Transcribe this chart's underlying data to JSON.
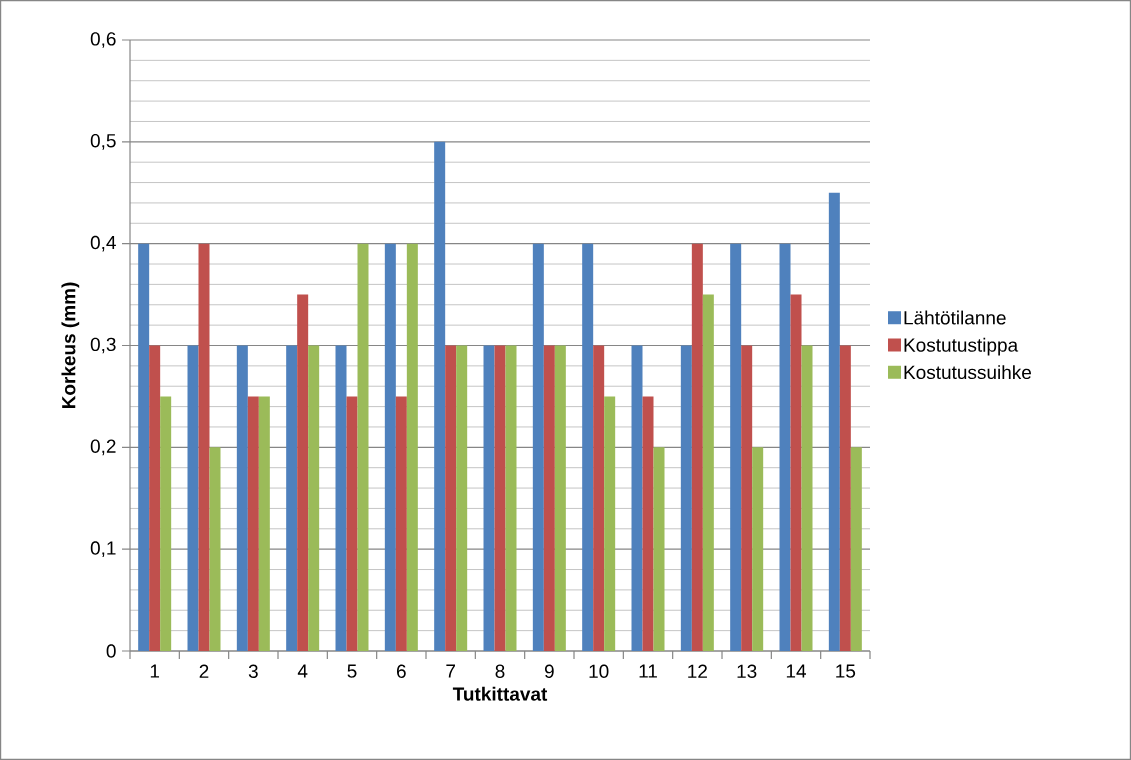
{
  "chart_data": {
    "type": "bar",
    "xlabel": "Tutkittavat",
    "ylabel": "Korkeus (mm)",
    "categories": [
      "1",
      "2",
      "3",
      "4",
      "5",
      "6",
      "7",
      "8",
      "9",
      "10",
      "11",
      "12",
      "13",
      "14",
      "15"
    ],
    "series": [
      {
        "name": "Lähtötilanne",
        "color": "#4f81bd",
        "values": [
          0.4,
          0.3,
          0.3,
          0.3,
          0.3,
          0.4,
          0.5,
          0.3,
          0.4,
          0.4,
          0.3,
          0.3,
          0.4,
          0.4,
          0.45
        ]
      },
      {
        "name": "Kostutustippa",
        "color": "#c0504d",
        "values": [
          0.3,
          0.4,
          0.25,
          0.35,
          0.25,
          0.25,
          0.3,
          0.3,
          0.3,
          0.3,
          0.25,
          0.4,
          0.3,
          0.35,
          0.3
        ]
      },
      {
        "name": "Kostutussuihke",
        "color": "#9bbb59",
        "values": [
          0.25,
          0.2,
          0.25,
          0.3,
          0.4,
          0.4,
          0.3,
          0.3,
          0.3,
          0.25,
          0.2,
          0.35,
          0.2,
          0.3,
          0.2
        ]
      }
    ],
    "ylim": [
      0,
      0.6
    ],
    "yticks": [
      {
        "value": 0,
        "label": "0"
      },
      {
        "value": 0.1,
        "label": "0,1"
      },
      {
        "value": 0.2,
        "label": "0,2"
      },
      {
        "value": 0.3,
        "label": "0,3"
      },
      {
        "value": 0.4,
        "label": "0,4"
      },
      {
        "value": 0.5,
        "label": "0,5"
      },
      {
        "value": 0.6,
        "label": "0,6"
      }
    ],
    "grid": "y",
    "legend": "right"
  }
}
